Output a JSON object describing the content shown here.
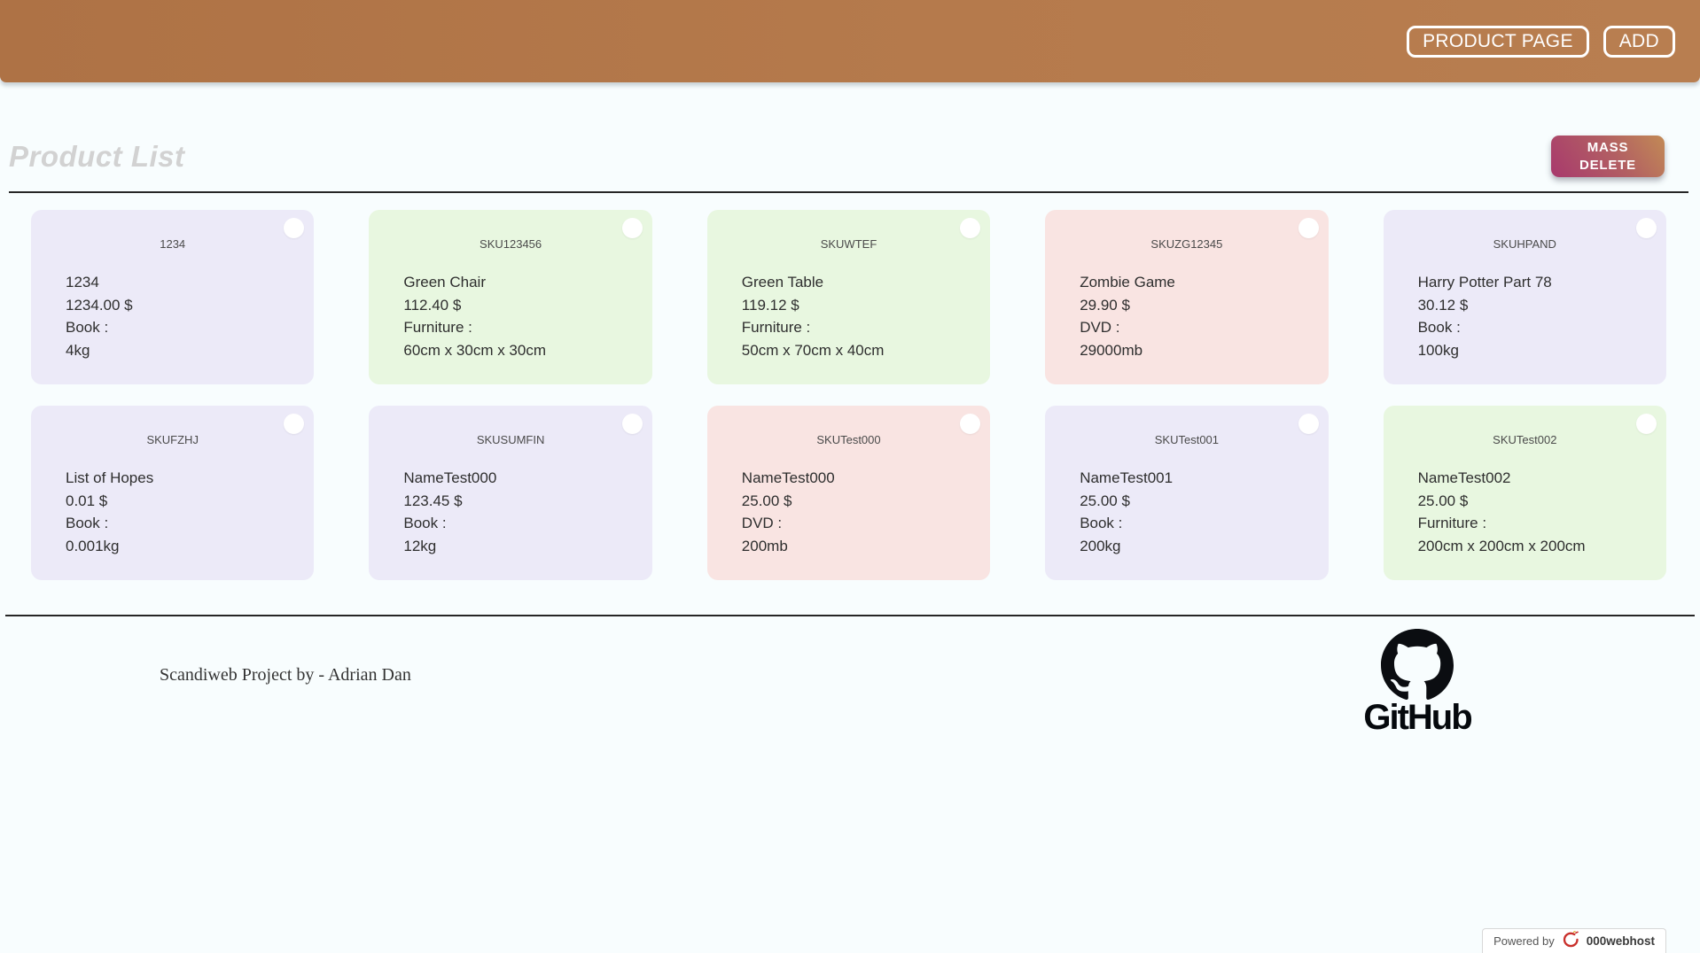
{
  "header": {
    "product_page_label": "PRODUCT PAGE",
    "add_label": "ADD",
    "bg_color": "#b57a4c"
  },
  "toolbar": {
    "title": "Product List",
    "mass_delete_label": "MASS\nDELETE",
    "mass_delete_gradient": [
      "#a8396d",
      "#c28a55"
    ]
  },
  "card_colors": {
    "book": "#eceaf8",
    "furniture": "#e8f7e0",
    "dvd": "#f9e4e2"
  },
  "products": [
    {
      "sku": "1234",
      "name": "1234",
      "price": "1234.00 $",
      "category": "Book :",
      "attribute": "4kg",
      "type": "book"
    },
    {
      "sku": "SKU123456",
      "name": "Green Chair",
      "price": "112.40 $",
      "category": "Furniture :",
      "attribute": "60cm x 30cm x 30cm",
      "type": "furniture"
    },
    {
      "sku": "SKUWTEF",
      "name": "Green Table",
      "price": "119.12 $",
      "category": "Furniture :",
      "attribute": "50cm x 70cm x 40cm",
      "type": "furniture"
    },
    {
      "sku": "SKUZG12345",
      "name": "Zombie Game",
      "price": "29.90 $",
      "category": "DVD :",
      "attribute": "29000mb",
      "type": "dvd"
    },
    {
      "sku": "SKUHPAND",
      "name": "Harry Potter Part 78",
      "price": "30.12 $",
      "category": "Book :",
      "attribute": "100kg",
      "type": "book"
    },
    {
      "sku": "SKUFZHJ",
      "name": "List of Hopes",
      "price": "0.01 $",
      "category": "Book :",
      "attribute": "0.001kg",
      "type": "book"
    },
    {
      "sku": "SKUSUMFIN",
      "name": "NameTest000",
      "price": "123.45 $",
      "category": "Book :",
      "attribute": "12kg",
      "type": "book"
    },
    {
      "sku": "SKUTest000",
      "name": "NameTest000",
      "price": "25.00 $",
      "category": "DVD :",
      "attribute": "200mb",
      "type": "dvd"
    },
    {
      "sku": "SKUTest001",
      "name": "NameTest001",
      "price": "25.00 $",
      "category": "Book :",
      "attribute": "200kg",
      "type": "book"
    },
    {
      "sku": "SKUTest002",
      "name": "NameTest002",
      "price": "25.00 $",
      "category": "Furniture :",
      "attribute": "200cm x 200cm x 200cm",
      "type": "furniture"
    }
  ],
  "footer": {
    "credit": "Scandiweb Project by - Adrian Dan",
    "github_label": "GitHub"
  },
  "badge": {
    "powered_by": "Powered by",
    "brand": "000webhost",
    "brand_color": "#c9302c"
  }
}
